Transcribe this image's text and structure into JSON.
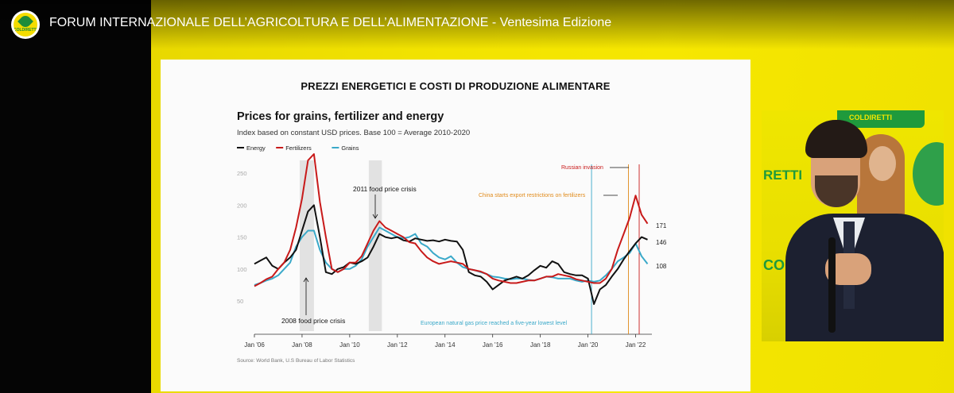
{
  "window": {
    "title": "FORUM INTERNAZIONALE DELL’AGRICOLTURA E DELL’ALIMENTAZIONE - Ventesima Edizione",
    "logo_text": "COLDIRETTI"
  },
  "slide": {
    "heading": "PREZZI ENERGETICI E COSTI DI PRODUZIONE ALIMENTARE"
  },
  "chart_data": {
    "type": "line",
    "title": "Prices for grains, fertilizer and energy",
    "subtitle": "Index based on constant USD prices. Base 100 = Average 2010-2020",
    "xlabel": "",
    "ylabel": "",
    "x_start": "2006-01",
    "x_end": "2022-06",
    "x_ticks": [
      "Jan '06",
      "Jan '08",
      "Jan '10",
      "Jan '12",
      "Jan '14",
      "Jan '16",
      "Jan '18",
      "Jan '20",
      "Jan '22"
    ],
    "y_ticks": [
      50,
      100,
      150,
      200,
      250
    ],
    "ylim": [
      50,
      285
    ],
    "grid": false,
    "legend_position": "top-left",
    "x_years": [
      2006.0,
      2006.25,
      2006.5,
      2006.75,
      2007.0,
      2007.25,
      2007.5,
      2007.75,
      2008.0,
      2008.25,
      2008.5,
      2008.75,
      2009.0,
      2009.25,
      2009.5,
      2009.75,
      2010.0,
      2010.25,
      2010.5,
      2010.75,
      2011.0,
      2011.25,
      2011.5,
      2011.75,
      2012.0,
      2012.25,
      2012.5,
      2012.75,
      2013.0,
      2013.25,
      2013.5,
      2013.75,
      2014.0,
      2014.25,
      2014.5,
      2014.75,
      2015.0,
      2015.25,
      2015.5,
      2015.75,
      2016.0,
      2016.25,
      2016.5,
      2016.75,
      2017.0,
      2017.25,
      2017.5,
      2017.75,
      2018.0,
      2018.25,
      2018.5,
      2018.75,
      2019.0,
      2019.25,
      2019.5,
      2019.75,
      2020.0,
      2020.25,
      2020.5,
      2020.75,
      2021.0,
      2021.25,
      2021.5,
      2021.75,
      2022.0,
      2022.25,
      2022.5
    ],
    "series": [
      {
        "name": "Energy",
        "color": "#111111",
        "values": [
          108,
          113,
          118,
          105,
          100,
          110,
          118,
          130,
          160,
          190,
          200,
          150,
          95,
          92,
          100,
          103,
          110,
          108,
          112,
          118,
          135,
          155,
          150,
          148,
          150,
          145,
          143,
          148,
          146,
          144,
          145,
          143,
          146,
          144,
          143,
          130,
          95,
          90,
          88,
          80,
          68,
          75,
          82,
          85,
          88,
          85,
          90,
          98,
          105,
          102,
          112,
          108,
          95,
          92,
          90,
          90,
          85,
          45,
          68,
          75,
          88,
          100,
          115,
          128,
          140,
          150,
          146
        ]
      },
      {
        "name": "Fertilizers",
        "color": "#c81a1a",
        "values": [
          73,
          78,
          84,
          88,
          100,
          110,
          130,
          165,
          210,
          270,
          280,
          205,
          150,
          100,
          95,
          100,
          110,
          110,
          120,
          140,
          160,
          175,
          165,
          160,
          155,
          150,
          142,
          140,
          128,
          118,
          112,
          108,
          110,
          112,
          110,
          108,
          100,
          98,
          96,
          92,
          85,
          82,
          80,
          78,
          78,
          80,
          82,
          82,
          85,
          88,
          88,
          92,
          90,
          88,
          84,
          82,
          80,
          78,
          78,
          85,
          100,
          130,
          155,
          180,
          215,
          185,
          171
        ]
      },
      {
        "name": "Grains",
        "color": "#3aa9c9",
        "values": [
          75,
          78,
          82,
          85,
          90,
          100,
          110,
          135,
          150,
          160,
          160,
          130,
          110,
          100,
          95,
          100,
          100,
          105,
          115,
          135,
          150,
          165,
          160,
          155,
          150,
          148,
          150,
          155,
          140,
          135,
          125,
          118,
          115,
          120,
          110,
          103,
          100,
          98,
          95,
          92,
          88,
          87,
          85,
          84,
          85,
          85,
          83,
          82,
          85,
          88,
          87,
          85,
          85,
          85,
          82,
          80,
          82,
          80,
          82,
          90,
          100,
          112,
          118,
          125,
          140,
          120,
          108
        ]
      }
    ],
    "end_labels": [
      "171",
      "146",
      "108"
    ],
    "annotations": [
      {
        "text": "2011 food price crisis",
        "x": 2011.5,
        "y": 232,
        "color": "#111111"
      },
      {
        "text": "2008 food price crisis",
        "x": 2008.2,
        "y": 36,
        "color": "#111111"
      },
      {
        "text": "Russian invasion",
        "x": 2022.15,
        "y": 276,
        "color": "#c81a1a"
      },
      {
        "text": "China starts export restrictions on fertilizers",
        "x": 2021.7,
        "y": 240,
        "color": "#e08a1a"
      },
      {
        "text": "European natural gas price reached a five-year lowest level",
        "x": 2020.2,
        "y": 34,
        "color": "#3aa9c9"
      }
    ],
    "shaded_periods": [
      [
        2007.9,
        2008.5
      ],
      [
        2010.8,
        2011.35
      ]
    ],
    "source": "Source: World Bank, U.S Bureau of Labor Statistics"
  },
  "pip": {
    "banner_text": "COLDIRETTI",
    "side_text": "RETTI",
    "lower_text": "COLD"
  }
}
